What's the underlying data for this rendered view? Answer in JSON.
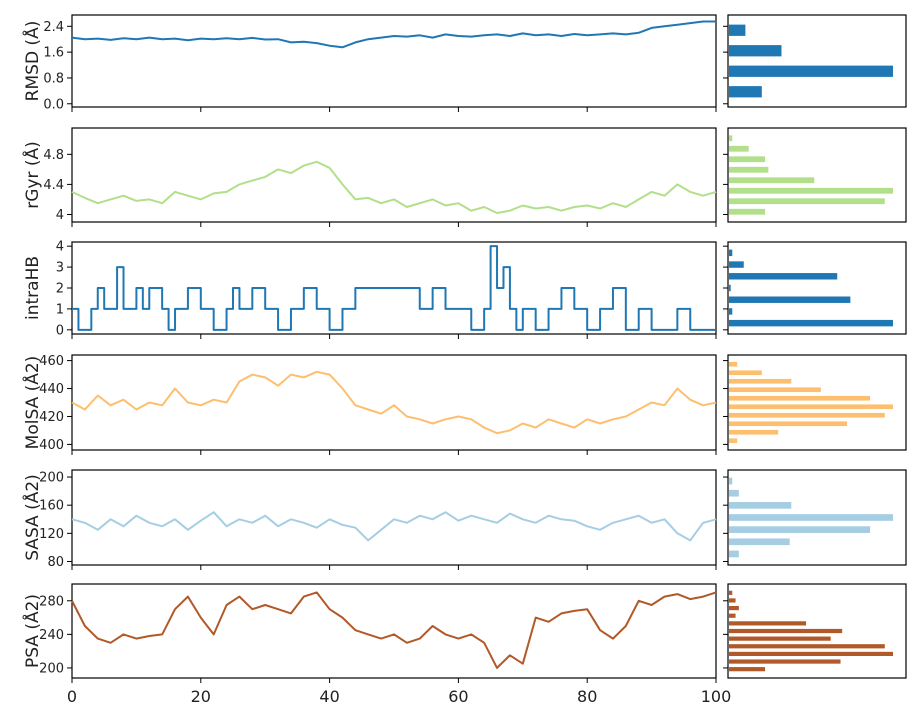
{
  "chart_data": [
    {
      "type": "line",
      "ylabel": "RMSD (Å)",
      "yticks": [
        0.0,
        0.8,
        1.6,
        2.4
      ],
      "ylim": [
        -0.1,
        2.75
      ],
      "color": "#1f78b4",
      "x": [
        0,
        2,
        4,
        6,
        8,
        10,
        12,
        14,
        16,
        18,
        20,
        22,
        24,
        26,
        28,
        30,
        32,
        34,
        36,
        38,
        40,
        42,
        44,
        46,
        48,
        50,
        52,
        54,
        56,
        58,
        60,
        62,
        64,
        66,
        68,
        70,
        72,
        74,
        76,
        78,
        80,
        82,
        84,
        86,
        88,
        90,
        92,
        94,
        96,
        98,
        100
      ],
      "y": [
        2.05,
        2.0,
        2.02,
        1.98,
        2.03,
        2.0,
        2.05,
        2.0,
        2.02,
        1.97,
        2.02,
        2.0,
        2.03,
        2.0,
        2.04,
        1.99,
        2.0,
        1.9,
        1.92,
        1.88,
        1.8,
        1.75,
        1.9,
        2.0,
        2.05,
        2.1,
        2.08,
        2.12,
        2.05,
        2.15,
        2.1,
        2.08,
        2.12,
        2.15,
        2.1,
        2.18,
        2.12,
        2.15,
        2.1,
        2.16,
        2.12,
        2.15,
        2.18,
        2.15,
        2.2,
        2.35,
        2.4,
        2.45,
        2.5,
        2.55,
        2.55
      ],
      "hist": [
        0.1,
        0.32,
        1.0,
        0.2
      ]
    },
    {
      "type": "line",
      "ylabel": "rGyr (Å)",
      "yticks": [
        4.0,
        4.4,
        4.8
      ],
      "ylim": [
        3.9,
        5.15
      ],
      "color": "#b2df8a",
      "x": [
        0,
        2,
        4,
        6,
        8,
        10,
        12,
        14,
        16,
        18,
        20,
        22,
        24,
        26,
        28,
        30,
        32,
        34,
        36,
        38,
        40,
        42,
        44,
        46,
        48,
        50,
        52,
        54,
        56,
        58,
        60,
        62,
        64,
        66,
        68,
        70,
        72,
        74,
        76,
        78,
        80,
        82,
        84,
        86,
        88,
        90,
        92,
        94,
        96,
        98,
        100
      ],
      "y": [
        4.3,
        4.22,
        4.15,
        4.2,
        4.25,
        4.18,
        4.2,
        4.15,
        4.3,
        4.25,
        4.2,
        4.28,
        4.3,
        4.4,
        4.45,
        4.5,
        4.6,
        4.55,
        4.65,
        4.7,
        4.62,
        4.4,
        4.2,
        4.22,
        4.15,
        4.2,
        4.1,
        4.15,
        4.2,
        4.12,
        4.15,
        4.05,
        4.1,
        4.02,
        4.05,
        4.12,
        4.08,
        4.1,
        4.05,
        4.1,
        4.12,
        4.08,
        4.15,
        4.1,
        4.2,
        4.3,
        4.25,
        4.4,
        4.3,
        4.25,
        4.3
      ],
      "hist": [
        0.02,
        0.12,
        0.22,
        0.24,
        0.52,
        1.0,
        0.95,
        0.22
      ]
    },
    {
      "type": "step",
      "ylabel": "intraHB",
      "yticks": [
        0,
        1,
        2,
        3,
        4
      ],
      "ylim": [
        -0.2,
        4.2
      ],
      "color": "#1f78b4",
      "x": [
        0,
        1,
        3,
        4,
        5,
        7,
        8,
        10,
        11,
        12,
        14,
        15,
        16,
        18,
        20,
        22,
        24,
        25,
        26,
        28,
        30,
        32,
        34,
        36,
        38,
        40,
        42,
        44,
        46,
        48,
        50,
        52,
        54,
        56,
        58,
        60,
        62,
        64,
        65,
        66,
        67,
        68,
        69,
        70,
        72,
        74,
        76,
        78,
        80,
        82,
        84,
        86,
        88,
        90,
        92,
        94,
        96,
        98,
        100
      ],
      "y": [
        1,
        0,
        1,
        2,
        1,
        3,
        1,
        2,
        1,
        2,
        1,
        0,
        1,
        2,
        1,
        0,
        1,
        2,
        1,
        2,
        1,
        0,
        1,
        2,
        1,
        0,
        1,
        2,
        2,
        2,
        2,
        2,
        1,
        2,
        1,
        1,
        0,
        1,
        4,
        2,
        3,
        1,
        0,
        1,
        0,
        1,
        2,
        1,
        0,
        1,
        2,
        0,
        1,
        0,
        0,
        1,
        0,
        0,
        0
      ],
      "hist": [
        0.02,
        0.09,
        0.66,
        0.01,
        0.74,
        0.02,
        1.0
      ]
    },
    {
      "type": "line",
      "ylabel": "MolSA (Å2)",
      "yticks": [
        400,
        420,
        440,
        460
      ],
      "ylim": [
        396,
        464
      ],
      "color": "#fdbf6f",
      "x": [
        0,
        2,
        4,
        6,
        8,
        10,
        12,
        14,
        16,
        18,
        20,
        22,
        24,
        26,
        28,
        30,
        32,
        34,
        36,
        38,
        40,
        42,
        44,
        46,
        48,
        50,
        52,
        54,
        56,
        58,
        60,
        62,
        64,
        66,
        68,
        70,
        72,
        74,
        76,
        78,
        80,
        82,
        84,
        86,
        88,
        90,
        92,
        94,
        96,
        98,
        100
      ],
      "y": [
        430,
        425,
        435,
        428,
        432,
        425,
        430,
        428,
        440,
        430,
        428,
        432,
        430,
        445,
        450,
        448,
        442,
        450,
        448,
        452,
        450,
        440,
        428,
        425,
        422,
        428,
        420,
        418,
        415,
        418,
        420,
        418,
        412,
        408,
        410,
        415,
        412,
        418,
        415,
        412,
        418,
        415,
        418,
        420,
        425,
        430,
        428,
        440,
        432,
        428,
        430
      ],
      "hist": [
        0.05,
        0.2,
        0.38,
        0.56,
        0.86,
        1.0,
        0.95,
        0.72,
        0.3,
        0.05
      ]
    },
    {
      "type": "line",
      "ylabel": "SASA (Å2)",
      "yticks": [
        80,
        120,
        160,
        200
      ],
      "ylim": [
        75,
        210
      ],
      "color": "#a6cee3",
      "x": [
        0,
        2,
        4,
        6,
        8,
        10,
        12,
        14,
        16,
        18,
        20,
        22,
        24,
        26,
        28,
        30,
        32,
        34,
        36,
        38,
        40,
        42,
        44,
        46,
        48,
        50,
        52,
        54,
        56,
        58,
        60,
        62,
        64,
        66,
        68,
        70,
        72,
        74,
        76,
        78,
        80,
        82,
        84,
        86,
        88,
        90,
        92,
        94,
        96,
        98,
        100
      ],
      "y": [
        140,
        135,
        125,
        140,
        130,
        145,
        135,
        130,
        140,
        125,
        138,
        150,
        130,
        140,
        135,
        145,
        130,
        140,
        135,
        128,
        140,
        132,
        128,
        110,
        125,
        140,
        135,
        145,
        140,
        150,
        138,
        145,
        140,
        135,
        148,
        140,
        135,
        145,
        140,
        138,
        130,
        125,
        135,
        140,
        145,
        135,
        140,
        120,
        110,
        135,
        140
      ],
      "hist": [
        0.02,
        0.06,
        0.38,
        1.0,
        0.86,
        0.37,
        0.06
      ]
    },
    {
      "type": "line",
      "ylabel": "PSA (Å2)",
      "yticks": [
        200,
        240,
        280
      ],
      "ylim": [
        188,
        300
      ],
      "color": "#b15928",
      "x": [
        0,
        2,
        4,
        6,
        8,
        10,
        12,
        14,
        16,
        18,
        20,
        22,
        24,
        26,
        28,
        30,
        32,
        34,
        36,
        38,
        40,
        42,
        44,
        46,
        48,
        50,
        52,
        54,
        56,
        58,
        60,
        62,
        64,
        66,
        68,
        70,
        72,
        74,
        76,
        78,
        80,
        82,
        84,
        86,
        88,
        90,
        92,
        94,
        96,
        98,
        100
      ],
      "y": [
        280,
        250,
        235,
        230,
        240,
        235,
        238,
        240,
        270,
        285,
        260,
        240,
        275,
        285,
        270,
        275,
        270,
        265,
        285,
        290,
        270,
        260,
        245,
        240,
        235,
        240,
        230,
        235,
        250,
        240,
        235,
        240,
        230,
        200,
        215,
        205,
        260,
        255,
        265,
        268,
        270,
        245,
        235,
        250,
        280,
        275,
        285,
        288,
        282,
        285,
        290
      ],
      "hist": [
        0.02,
        0.04,
        0.06,
        0.04,
        0.47,
        0.69,
        0.62,
        0.95,
        1.0,
        0.68,
        0.22
      ]
    }
  ],
  "x_axis": {
    "ticks": [
      0,
      20,
      40,
      60,
      80,
      100
    ],
    "xlim": [
      0,
      100
    ]
  }
}
